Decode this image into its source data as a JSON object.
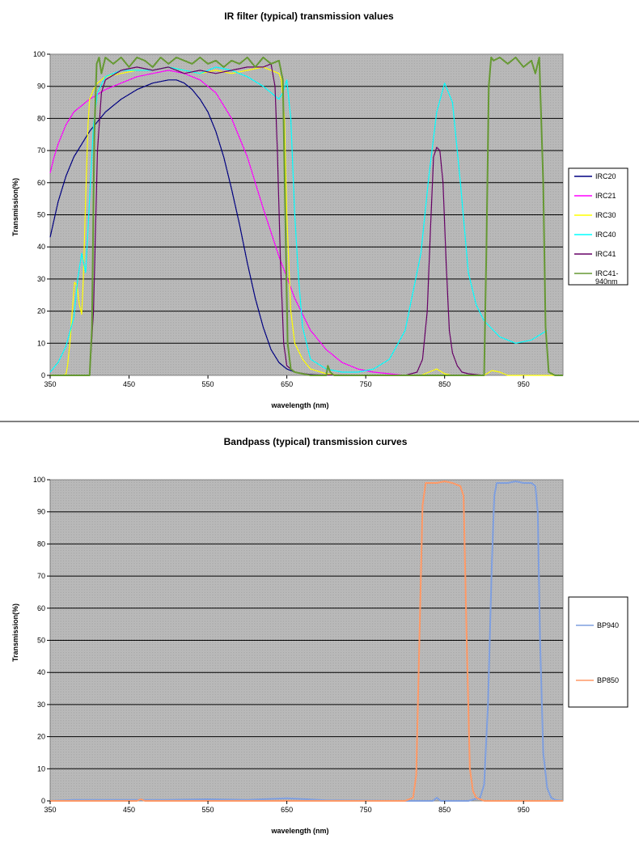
{
  "chart_data": [
    {
      "type": "line",
      "title": "IR filter (typical) transmission values",
      "xlabel": "wavelength (nm)",
      "ylabel": "Transmission(%)",
      "xlim": [
        350,
        1000
      ],
      "ylim": [
        0,
        100
      ],
      "xticks": [
        350,
        450,
        550,
        650,
        750,
        850,
        950
      ],
      "yticks": [
        0,
        10,
        20,
        30,
        40,
        50,
        60,
        70,
        80,
        90,
        100
      ],
      "grid": "horizontal",
      "legend_position": "right",
      "series": [
        {
          "name": "IRC20",
          "color": "#000080",
          "x": [
            350,
            360,
            370,
            380,
            390,
            400,
            420,
            440,
            460,
            480,
            500,
            510,
            520,
            530,
            540,
            550,
            560,
            570,
            580,
            590,
            600,
            610,
            620,
            630,
            640,
            650,
            660,
            670,
            680,
            700
          ],
          "y": [
            43,
            54,
            62,
            68,
            72,
            76,
            82,
            86,
            89,
            91,
            92,
            92,
            91,
            89,
            86,
            82,
            76,
            68,
            58,
            47,
            35,
            24,
            15,
            8,
            4,
            2,
            1,
            0.5,
            0.3,
            0
          ]
        },
        {
          "name": "IRC21",
          "color": "#FF00FF",
          "x": [
            350,
            355,
            360,
            370,
            380,
            390,
            400,
            420,
            440,
            460,
            480,
            500,
            520,
            540,
            560,
            580,
            600,
            620,
            640,
            660,
            680,
            700,
            720,
            740,
            760,
            780,
            800
          ],
          "y": [
            63,
            68,
            72,
            78,
            82,
            84,
            86,
            89,
            91,
            93,
            94,
            95,
            94,
            92,
            88,
            80,
            68,
            52,
            37,
            24,
            14,
            8,
            4,
            2,
            1,
            0.5,
            0
          ]
        },
        {
          "name": "IRC30",
          "color": "#FFFF00",
          "x": [
            350,
            360,
            365,
            370,
            372,
            375,
            378,
            381,
            384,
            387,
            390,
            392,
            395,
            398,
            400,
            405,
            410,
            420,
            440,
            460,
            480,
            500,
            520,
            540,
            560,
            580,
            600,
            620,
            630,
            640,
            643,
            647,
            650,
            655,
            660,
            670,
            680,
            700,
            720,
            760,
            820,
            835,
            840,
            850,
            860,
            900,
            910,
            920,
            930,
            1000
          ],
          "y": [
            0,
            0,
            0,
            0.3,
            3,
            10,
            20,
            29,
            28,
            22,
            19,
            30,
            55,
            78,
            86,
            89,
            91,
            93,
            94,
            95,
            95,
            96,
            95,
            94,
            95,
            94,
            95,
            96,
            95,
            94,
            92,
            80,
            50,
            20,
            10,
            5,
            2,
            0.5,
            0,
            0,
            0,
            1.5,
            2,
            0.5,
            0,
            0,
            1.5,
            1,
            0,
            0
          ]
        },
        {
          "name": "IRC40",
          "color": "#00FFFF",
          "x": [
            350,
            360,
            370,
            380,
            385,
            390,
            395,
            400,
            405,
            410,
            420,
            440,
            460,
            480,
            500,
            520,
            540,
            560,
            580,
            600,
            620,
            630,
            640,
            645,
            650,
            655,
            660,
            665,
            670,
            680,
            700,
            720,
            740,
            760,
            780,
            800,
            820,
            830,
            840,
            850,
            860,
            870,
            880,
            890,
            900,
            920,
            940,
            960,
            980
          ],
          "y": [
            1,
            4,
            9,
            18,
            30,
            38,
            32,
            55,
            78,
            88,
            93,
            95,
            95,
            95,
            96,
            95,
            94,
            96,
            95,
            93,
            90,
            88,
            86,
            88,
            92,
            80,
            50,
            30,
            15,
            5,
            2,
            1,
            1,
            2,
            5,
            14,
            38,
            62,
            82,
            91,
            85,
            60,
            32,
            22,
            17,
            12,
            10,
            11,
            14
          ]
        },
        {
          "name": "IRC41",
          "color": "#660066",
          "x": [
            350,
            400,
            405,
            410,
            415,
            420,
            440,
            460,
            480,
            500,
            520,
            540,
            560,
            580,
            600,
            620,
            630,
            635,
            638,
            642,
            646,
            650,
            660,
            680,
            800,
            815,
            822,
            828,
            832,
            836,
            840,
            844,
            848,
            852,
            856,
            860,
            866,
            872,
            880,
            900
          ],
          "y": [
            0,
            0,
            20,
            70,
            88,
            92,
            95,
            96,
            95,
            96,
            94,
            95,
            94,
            95,
            96,
            96,
            97,
            90,
            70,
            35,
            10,
            3,
            1,
            0.2,
            0,
            1,
            5,
            20,
            45,
            68,
            71,
            70,
            60,
            35,
            14,
            7,
            3,
            1,
            0.5,
            0
          ]
        },
        {
          "name": "IRC41-940nm",
          "color": "#669933",
          "x": [
            350,
            400,
            403,
            406,
            409,
            412,
            415,
            420,
            430,
            440,
            450,
            460,
            470,
            480,
            490,
            500,
            510,
            520,
            530,
            540,
            550,
            560,
            570,
            580,
            590,
            600,
            610,
            620,
            630,
            640,
            645,
            648,
            651,
            655,
            660,
            680,
            700,
            702,
            705,
            710,
            780,
            790,
            900,
            903,
            906,
            909,
            912,
            920,
            930,
            940,
            950,
            960,
            965,
            970,
            975,
            978,
            982,
            990,
            1000
          ],
          "y": [
            0,
            0,
            15,
            75,
            97,
            99,
            94,
            99,
            97,
            99,
            96,
            99,
            98,
            96,
            99,
            97,
            99,
            98,
            97,
            99,
            97,
            98,
            96,
            98,
            97,
            99,
            96,
            99,
            97,
            98,
            92,
            50,
            10,
            2,
            1,
            0,
            0,
            3,
            1,
            0,
            0,
            0,
            0,
            40,
            90,
            99,
            98,
            99,
            97,
            99,
            96,
            98,
            94,
            99,
            60,
            15,
            1,
            0,
            0
          ]
        }
      ]
    },
    {
      "type": "line",
      "title": "Bandpass (typical) transmission curves",
      "xlabel": "wavelength (nm)",
      "ylabel": "Transmission(%)",
      "xlim": [
        350,
        1000
      ],
      "ylim": [
        0,
        100
      ],
      "xticks": [
        350,
        450,
        550,
        650,
        750,
        850,
        950
      ],
      "yticks": [
        0,
        10,
        20,
        30,
        40,
        50,
        60,
        70,
        80,
        90,
        100
      ],
      "grid": "horizontal",
      "legend_position": "right",
      "series": [
        {
          "name": "BP940",
          "color": "#7F9FDF",
          "x": [
            350,
            380,
            400,
            500,
            550,
            600,
            650,
            700,
            800,
            835,
            840,
            845,
            880,
            895,
            900,
            905,
            910,
            913,
            916,
            920,
            930,
            940,
            950,
            960,
            965,
            968,
            971,
            975,
            980,
            985,
            990,
            1000
          ],
          "y": [
            0,
            0.3,
            0.3,
            0.3,
            0.5,
            0.3,
            0.8,
            0.2,
            0,
            0,
            1,
            0,
            0,
            1,
            5,
            30,
            75,
            95,
            99,
            99,
            99,
            99.5,
            99,
            99,
            98,
            90,
            50,
            15,
            4,
            1,
            0.3,
            0
          ]
        },
        {
          "name": "BP850",
          "color": "#FF9966",
          "x": [
            350,
            460,
            465,
            470,
            800,
            810,
            814,
            818,
            822,
            826,
            830,
            840,
            850,
            860,
            870,
            874,
            878,
            882,
            886,
            890,
            900,
            1000
          ],
          "y": [
            0,
            0,
            0.5,
            0,
            0,
            1,
            8,
            50,
            92,
            99,
            99,
            99,
            99.5,
            99,
            98,
            95,
            50,
            10,
            3,
            1,
            0,
            0
          ]
        }
      ]
    }
  ]
}
